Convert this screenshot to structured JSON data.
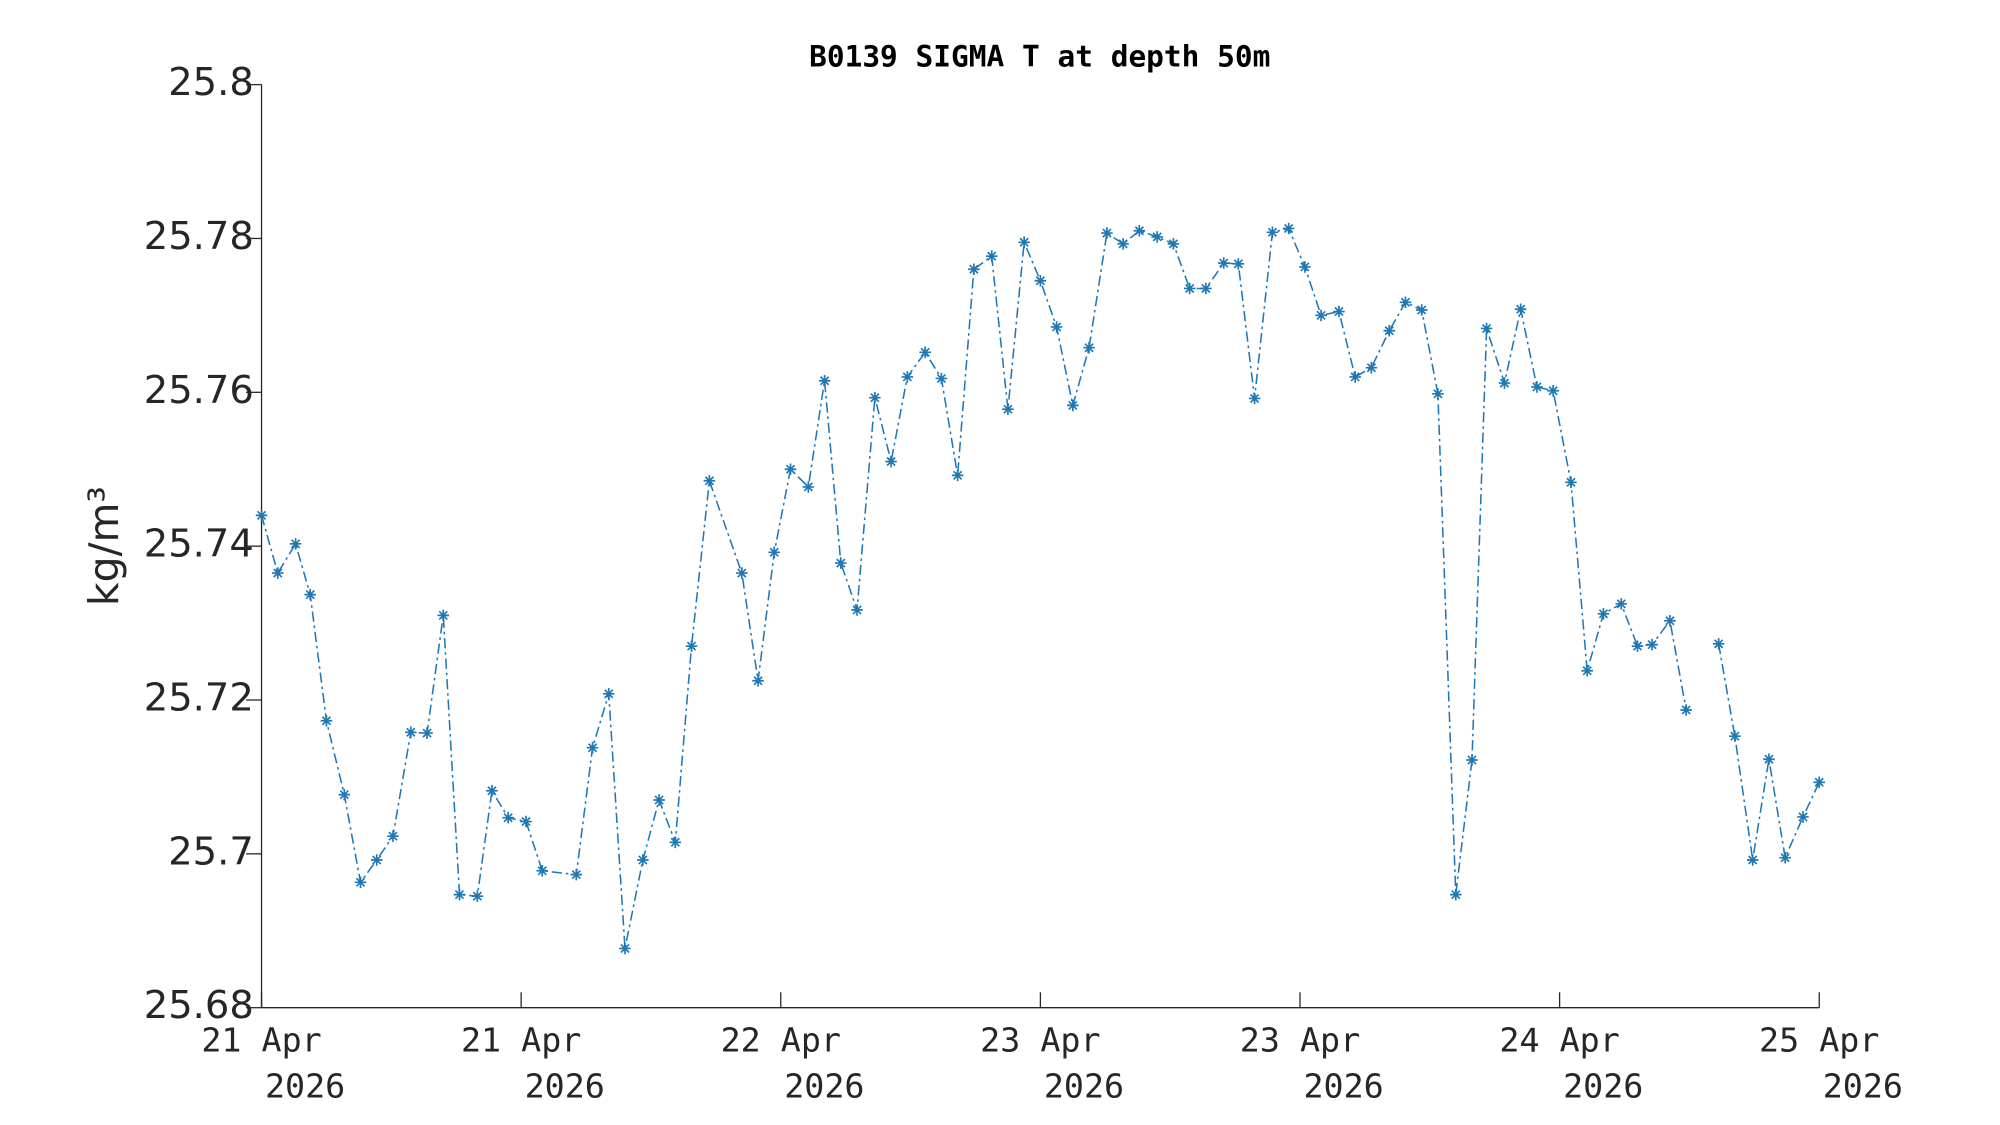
{
  "chart_data": {
    "type": "line",
    "title": "B0139 SIGMA T at depth 50m",
    "ylabel": "kg/m³",
    "xlim": [
      0,
      96
    ],
    "xticks": [
      {
        "value": 0,
        "label": [
          "21 Apr",
          "2026"
        ]
      },
      {
        "value": 16,
        "label": [
          "21 Apr",
          "2026"
        ]
      },
      {
        "value": 32,
        "label": [
          "22 Apr",
          "2026"
        ]
      },
      {
        "value": 48,
        "label": [
          "23 Apr",
          "2026"
        ]
      },
      {
        "value": 64,
        "label": [
          "23 Apr",
          "2026"
        ]
      },
      {
        "value": 80,
        "label": [
          "24 Apr",
          "2026"
        ]
      },
      {
        "value": 96,
        "label": [
          "25 Apr",
          "2026"
        ]
      }
    ],
    "ylim": [
      25.68,
      25.8
    ],
    "yticks": [
      25.68,
      25.7,
      25.72,
      25.74,
      25.76,
      25.78,
      25.8
    ],
    "grid": false,
    "x": [
      0,
      1.0,
      2.1,
      3.0,
      4.0,
      5.1,
      6.1,
      7.1,
      8.1,
      9.2,
      10.2,
      11.2,
      12.2,
      13.3,
      14.2,
      15.2,
      16.3,
      17.3,
      19.4,
      20.4,
      21.4,
      22.4,
      23.5,
      24.5,
      25.5,
      26.5,
      27.6,
      29.6,
      30.6,
      31.6,
      32.6,
      33.7,
      34.7,
      35.7,
      36.7,
      37.8,
      38.8,
      39.8,
      40.9,
      41.9,
      42.9,
      43.9,
      45.0,
      46.0,
      47.0,
      48.0,
      49.0,
      50.0,
      51.0,
      52.1,
      53.1,
      54.1,
      55.2,
      56.2,
      57.2,
      58.2,
      59.3,
      60.2,
      61.2,
      62.3,
      63.3,
      64.3,
      65.3,
      66.4,
      67.4,
      68.4,
      69.5,
      70.5,
      71.5,
      72.5,
      73.6,
      74.6,
      75.5,
      76.6,
      77.6,
      78.6,
      79.6,
      80.7,
      81.7,
      82.7,
      83.8,
      84.8,
      85.7,
      86.8,
      87.8,
      88.8,
      89.8,
      90.8,
      91.9,
      92.9,
      93.9,
      95.0,
      96
    ],
    "series": [
      {
        "name": "SIGMA T",
        "color": "#1f77b4",
        "values": [
          25.744,
          25.7365,
          25.7403,
          25.7337,
          25.7173,
          25.7077,
          25.6963,
          25.6992,
          25.7023,
          25.7158,
          25.7157,
          25.731,
          25.6947,
          25.6945,
          25.7082,
          25.7047,
          25.7042,
          25.6978,
          25.6973,
          25.7138,
          25.7208,
          25.6877,
          25.6992,
          25.707,
          25.7015,
          25.727,
          25.7485,
          25.7365,
          25.7225,
          25.7392,
          25.75,
          25.7477,
          25.7615,
          25.7378,
          25.7317,
          25.7593,
          25.751,
          25.762,
          25.7652,
          25.7618,
          25.7492,
          25.776,
          25.7777,
          25.7578,
          25.7795,
          25.7745,
          25.7685,
          25.7583,
          25.7658,
          25.7807,
          25.7793,
          25.781,
          25.7802,
          25.7793,
          25.7735,
          25.7735,
          25.7768,
          25.7767,
          25.7592,
          25.7808,
          25.7813,
          25.7763,
          25.77,
          25.7705,
          25.762,
          25.7632,
          25.768,
          25.7717,
          25.7707,
          25.7598,
          25.6947,
          25.7122,
          25.7683,
          25.7612,
          25.7708,
          25.7607,
          25.7602,
          25.7483,
          25.7238,
          25.7312,
          25.7325,
          25.727,
          25.7272,
          25.7303,
          25.7187,
          null,
          25.7273,
          25.7153,
          25.6992,
          25.7123,
          25.6995,
          25.7048,
          25.7093
        ]
      }
    ]
  }
}
